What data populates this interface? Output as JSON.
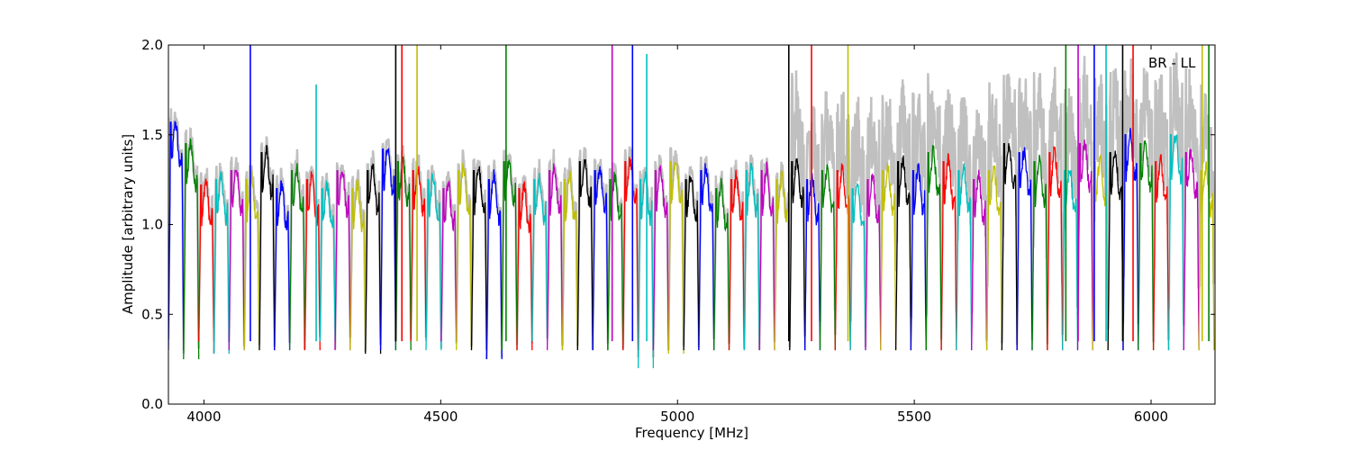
{
  "chart_data": {
    "type": "line",
    "title": "",
    "annotation": "BR - LL",
    "xlabel": "Frequency [MHz]",
    "ylabel": "Amplitude [arbitrary units]",
    "xlim": [
      3925,
      6135
    ],
    "ylim": [
      0.0,
      2.0
    ],
    "xticks": [
      4000,
      4500,
      5000,
      5500,
      6000
    ],
    "yticks": [
      0.0,
      0.5,
      1.0,
      1.5,
      2.0
    ],
    "ytick_labels": [
      "0.0",
      "0.5",
      "1.0",
      "1.5",
      "2.0"
    ],
    "grid": false,
    "series_colors": [
      "#0000ff",
      "#008000",
      "#ff0000",
      "#00bfbf",
      "#bf00bf",
      "#bfbf00",
      "#000000"
    ],
    "background_color": "#c0c0c0",
    "channel_width_mhz": 32,
    "channel_start_mhz": 3925,
    "channel_count": 69,
    "channel_peaks": [
      1.57,
      1.45,
      1.22,
      1.25,
      1.3,
      1.25,
      1.4,
      1.2,
      1.3,
      1.25,
      1.2,
      1.3,
      1.2,
      1.3,
      1.42,
      1.35,
      1.3,
      1.25,
      1.2,
      1.3,
      1.3,
      1.25,
      1.35,
      1.2,
      1.25,
      1.3,
      1.25,
      1.35,
      1.3,
      1.25,
      1.35,
      1.25,
      1.3,
      1.35,
      1.25,
      1.3,
      1.2,
      1.25,
      1.3,
      1.3,
      1.25,
      1.35,
      1.25,
      1.3,
      1.3,
      1.2,
      1.25,
      1.3,
      1.35,
      1.3,
      1.4,
      1.35,
      1.3,
      1.25,
      1.3,
      1.45,
      1.4,
      1.35,
      1.4,
      1.3,
      1.45,
      1.35,
      1.4,
      1.5,
      1.45,
      1.35,
      1.5,
      1.4,
      1.3
    ],
    "channel_minima": [
      0.3,
      0.25,
      0.35,
      0.28,
      0.3,
      0.3,
      0.3,
      0.3,
      0.3,
      0.3,
      0.35,
      0.3,
      0.3,
      0.28,
      0.3,
      0.3,
      0.35,
      0.3,
      0.35,
      0.3,
      0.3,
      0.25,
      0.3,
      0.3,
      0.35,
      0.3,
      0.3,
      0.3,
      0.3,
      0.3,
      0.3,
      0.2,
      0.3,
      0.28,
      0.3,
      0.3,
      0.3,
      0.3,
      0.3,
      0.3,
      0.3,
      0.3,
      0.3,
      0.3,
      0.3,
      0.3,
      0.3,
      0.3,
      0.3,
      0.3,
      0.3,
      0.3,
      0.3,
      0.3,
      0.3,
      0.3,
      0.3,
      0.3,
      0.3,
      0.3,
      0.3,
      0.3,
      0.3,
      0.3,
      0.3,
      0.3,
      0.3,
      0.3,
      0.3
    ],
    "rfi_spikes": [
      {
        "x": 4098,
        "y": 2.0
      },
      {
        "x": 4237,
        "y": 1.78
      },
      {
        "x": 4405,
        "y": 2.0
      },
      {
        "x": 4418,
        "y": 2.0
      },
      {
        "x": 4450,
        "y": 2.0
      },
      {
        "x": 4638,
        "y": 2.0
      },
      {
        "x": 4862,
        "y": 2.0
      },
      {
        "x": 4905,
        "y": 2.0
      },
      {
        "x": 4935,
        "y": 1.95
      },
      {
        "x": 5235,
        "y": 2.0
      },
      {
        "x": 5283,
        "y": 2.0
      },
      {
        "x": 5360,
        "y": 2.0
      },
      {
        "x": 5820,
        "y": 2.0
      },
      {
        "x": 5846,
        "y": 2.0
      },
      {
        "x": 5880,
        "y": 2.0
      },
      {
        "x": 5905,
        "y": 2.0
      },
      {
        "x": 5940,
        "y": 2.0
      },
      {
        "x": 5962,
        "y": 2.0
      },
      {
        "x": 6108,
        "y": 2.0
      },
      {
        "x": 6122,
        "y": 2.0
      }
    ]
  }
}
